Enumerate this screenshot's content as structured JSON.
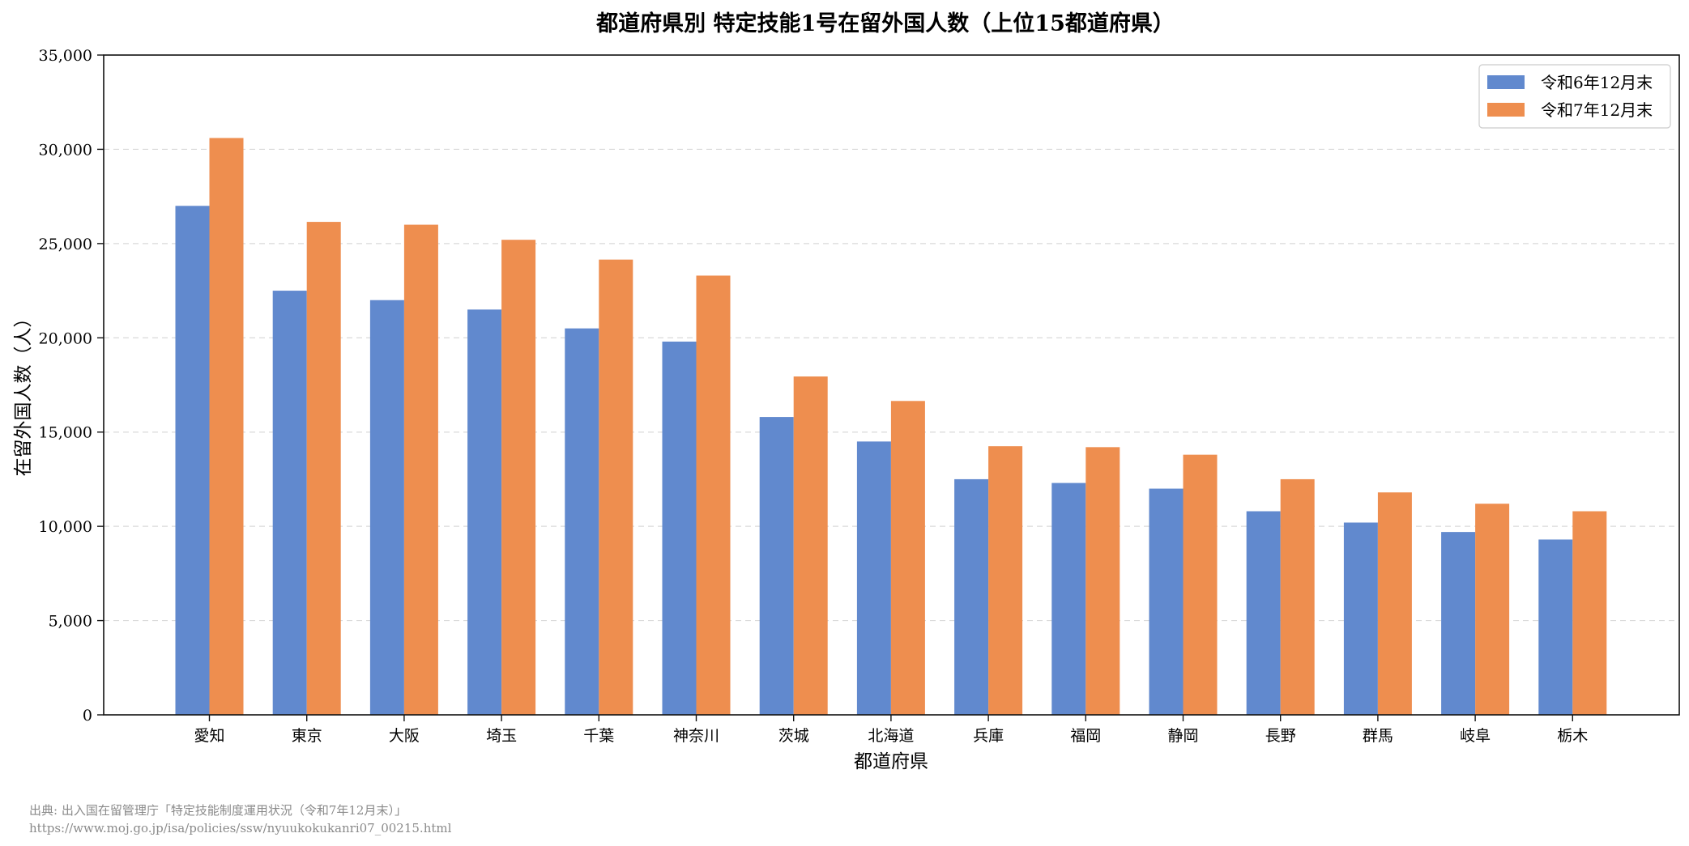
{
  "chart_data": {
    "type": "bar",
    "title": "都道府県別 特定技能1号在留外国人数（上位15都道府県）",
    "xlabel": "都道府県",
    "ylabel": "在留外国人数（人）",
    "categories": [
      "愛知",
      "東京",
      "大阪",
      "埼玉",
      "千葉",
      "神奈川",
      "茨城",
      "北海道",
      "兵庫",
      "福岡",
      "静岡",
      "長野",
      "群馬",
      "岐阜",
      "栃木"
    ],
    "series": [
      {
        "name": "令和6年12月末",
        "color": "#6189CE",
        "values": [
          27000,
          22500,
          22000,
          21500,
          20500,
          19800,
          15800,
          14500,
          12500,
          12300,
          12000,
          10800,
          10200,
          9700,
          9300
        ]
      },
      {
        "name": "令和7年12月末",
        "color": "#EE8E4F",
        "values": [
          30600,
          26150,
          26000,
          25200,
          24150,
          23300,
          17950,
          16650,
          14250,
          14200,
          13800,
          12500,
          11800,
          11200,
          10800
        ]
      }
    ],
    "ylim": [
      0,
      35000
    ],
    "yticks": [
      0,
      5000,
      10000,
      15000,
      20000,
      25000,
      30000,
      35000
    ],
    "ytick_labels": [
      "0",
      "5,000",
      "10,000",
      "15,000",
      "20,000",
      "25,000",
      "30,000",
      "35,000"
    ],
    "grid": "y-dashed",
    "legend": "top-right"
  },
  "source": {
    "line1": "出典: 出入国在留管理庁「特定技能制度運用状況（令和7年12月末）」",
    "line2": "https://www.moj.go.jp/isa/policies/ssw/nyuukokukanri07_00215.html"
  }
}
